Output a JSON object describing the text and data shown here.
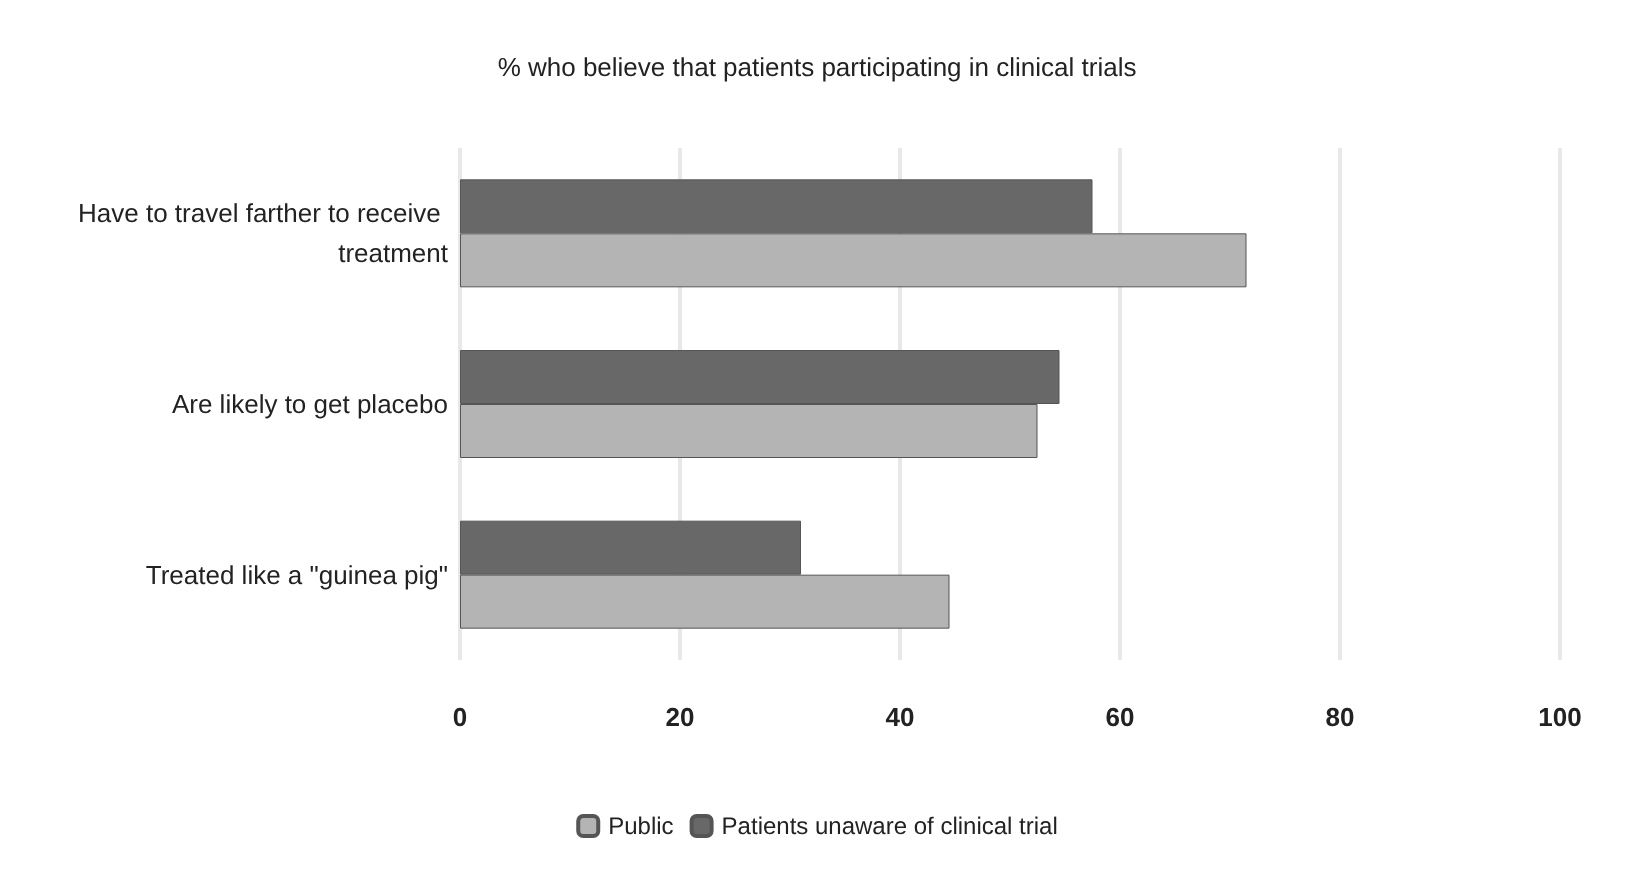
{
  "chart_data": {
    "type": "bar",
    "orientation": "horizontal",
    "title": "% who believe that patients participating in clinical trials",
    "categories": [
      "Have to travel farther to receive treatment",
      "Are likely to get placebo",
      "Treated like a \"guinea pig\""
    ],
    "series": [
      {
        "name": "Public",
        "color": "#b4b4b4",
        "values": [
          71.5,
          52.5,
          44.5
        ]
      },
      {
        "name": "Patients unaware of clinical trial",
        "color": "#686868",
        "values": [
          57.5,
          54.5,
          31
        ]
      }
    ],
    "xlim": [
      0,
      100
    ],
    "xticks": [
      0,
      20,
      40,
      60,
      80,
      100
    ],
    "grid": "x",
    "legend": "bottom"
  }
}
